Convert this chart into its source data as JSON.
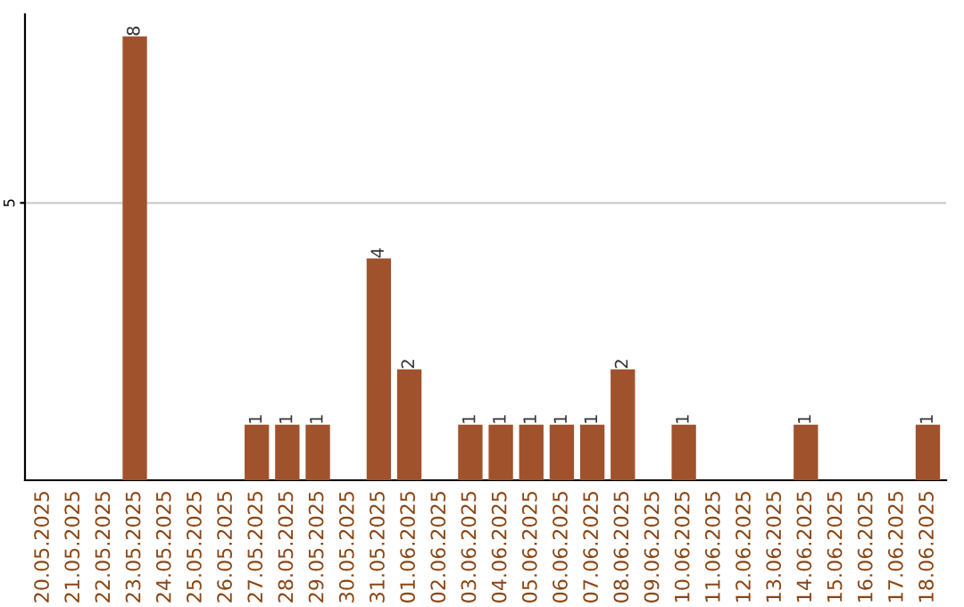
{
  "chart_data": {
    "type": "bar",
    "categories": [
      "20.05.2025",
      "21.05.2025",
      "22.05.2025",
      "23.05.2025",
      "24.05.2025",
      "25.05.2025",
      "26.05.2025",
      "27.05.2025",
      "28.05.2025",
      "29.05.2025",
      "30.05.2025",
      "31.05.2025",
      "01.06.2025",
      "02.06.2025",
      "03.06.2025",
      "04.06.2025",
      "05.06.2025",
      "06.06.2025",
      "07.06.2025",
      "08.06.2025",
      "09.06.2025",
      "10.06.2025",
      "11.06.2025",
      "12.06.2025",
      "13.06.2025",
      "14.06.2025",
      "15.06.2025",
      "16.06.2025",
      "17.06.2025",
      "18.06.2025"
    ],
    "values": [
      0,
      0,
      0,
      8,
      0,
      0,
      0,
      1,
      1,
      1,
      0,
      4,
      2,
      0,
      1,
      1,
      1,
      1,
      1,
      2,
      0,
      1,
      0,
      0,
      0,
      1,
      0,
      0,
      0,
      1
    ],
    "value_labels": [
      null,
      null,
      null,
      "8",
      null,
      null,
      null,
      "1",
      "1",
      "1",
      null,
      "4",
      "2",
      null,
      "1",
      "1",
      "1",
      "1",
      "1",
      "2",
      null,
      "1",
      null,
      null,
      null,
      "1",
      null,
      null,
      null,
      "1"
    ],
    "color": "#a0522d",
    "ylim": [
      0,
      8.4
    ],
    "yticks": [
      5
    ],
    "grid": "y",
    "legend": false
  }
}
